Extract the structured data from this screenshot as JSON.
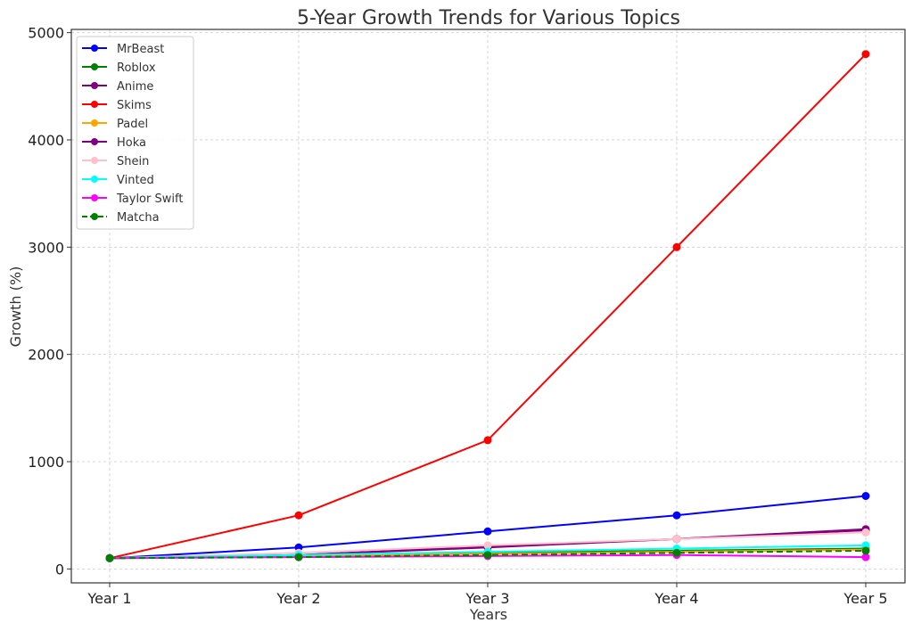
{
  "chart_data": {
    "type": "line",
    "title": "5-Year Growth Trends for Various Topics",
    "xlabel": "Years",
    "ylabel": "Growth (%)",
    "categories": [
      "Year 1",
      "Year 2",
      "Year 3",
      "Year 4",
      "Year 5"
    ],
    "ylim": [
      -130,
      5030
    ],
    "yticks": [
      0,
      1000,
      2000,
      3000,
      4000,
      5000
    ],
    "grid": true,
    "legend_position": "top-left",
    "series": [
      {
        "name": "MrBeast",
        "color": "#0000ff",
        "dashed": false,
        "values": [
          100,
          200,
          350,
          500,
          680
        ]
      },
      {
        "name": "Roblox",
        "color": "#008000",
        "dashed": false,
        "values": [
          100,
          120,
          150,
          170,
          190
        ]
      },
      {
        "name": "Anime",
        "color": "#800080",
        "dashed": false,
        "values": [
          100,
          130,
          210,
          280,
          370
        ]
      },
      {
        "name": "Skims",
        "color": "#ff0000",
        "dashed": false,
        "values": [
          100,
          500,
          1200,
          3000,
          4800
        ]
      },
      {
        "name": "Padel",
        "color": "#ffa500",
        "dashed": false,
        "values": [
          100,
          120,
          140,
          160,
          180
        ]
      },
      {
        "name": "Hoka",
        "color": "#800080",
        "dashed": false,
        "values": [
          100,
          130,
          200,
          280,
          360
        ]
      },
      {
        "name": "Shein",
        "color": "#ffc0cb",
        "dashed": false,
        "values": [
          100,
          150,
          220,
          280,
          340
        ]
      },
      {
        "name": "Vinted",
        "color": "#00ffff",
        "dashed": false,
        "values": [
          100,
          130,
          160,
          190,
          220
        ]
      },
      {
        "name": "Taylor Swift",
        "color": "#ff00ff",
        "dashed": false,
        "values": [
          100,
          110,
          120,
          130,
          110
        ]
      },
      {
        "name": "Matcha",
        "color": "#008000",
        "dashed": true,
        "values": [
          100,
          110,
          130,
          150,
          170
        ]
      }
    ]
  }
}
